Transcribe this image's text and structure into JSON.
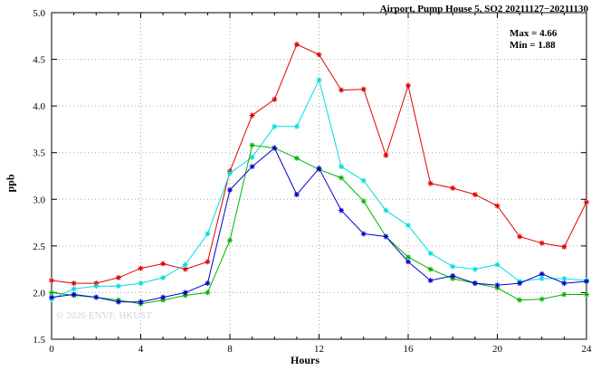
{
  "chart_data": {
    "type": "line",
    "title": "Airport, Pump House 5, SO2 20211127−20211130",
    "xlabel": "Hours",
    "ylabel": "ppb",
    "xlim": [
      0,
      24
    ],
    "ylim": [
      1.5,
      5.0
    ],
    "x_ticks": [
      0,
      4,
      8,
      12,
      16,
      20,
      24
    ],
    "y_ticks": [
      1.5,
      2.0,
      2.5,
      3.0,
      3.5,
      4.0,
      4.5,
      5.0
    ],
    "grid": true,
    "legend": "none",
    "annotations": {
      "max": "Max = 4.66",
      "min": "Min = 1.88"
    },
    "watermark": "© 2026 ENVF, HKUST",
    "x": [
      0,
      1,
      2,
      3,
      4,
      5,
      6,
      7,
      8,
      9,
      10,
      11,
      12,
      13,
      14,
      15,
      16,
      17,
      18,
      19,
      20,
      21,
      22,
      23,
      24
    ],
    "series": [
      {
        "name": "series-red",
        "color": "#e00000",
        "values": [
          2.13,
          2.1,
          2.1,
          2.16,
          2.26,
          2.31,
          2.25,
          2.33,
          3.3,
          3.9,
          4.07,
          4.66,
          4.55,
          4.17,
          4.18,
          3.47,
          4.22,
          3.17,
          3.12,
          3.05,
          2.93,
          2.6,
          2.53,
          2.49,
          2.97
        ]
      },
      {
        "name": "series-cyan",
        "color": "#00dcdc",
        "values": [
          1.93,
          2.04,
          2.07,
          2.07,
          2.1,
          2.16,
          2.3,
          2.63,
          3.28,
          3.45,
          3.78,
          3.78,
          4.28,
          3.35,
          3.2,
          2.88,
          2.72,
          2.42,
          2.28,
          2.25,
          2.3,
          2.12,
          2.15,
          2.15,
          2.13
        ]
      },
      {
        "name": "series-green",
        "color": "#00b400",
        "values": [
          2.0,
          1.97,
          1.95,
          1.92,
          1.88,
          1.92,
          1.97,
          2.0,
          2.56,
          3.58,
          3.55,
          3.44,
          3.32,
          3.23,
          2.98,
          2.6,
          2.38,
          2.25,
          2.15,
          2.1,
          2.05,
          1.92,
          1.93,
          1.98,
          1.98
        ]
      },
      {
        "name": "series-blue",
        "color": "#0000cc",
        "values": [
          1.95,
          1.98,
          1.95,
          1.9,
          1.9,
          1.95,
          2.0,
          2.1,
          3.1,
          3.35,
          3.55,
          3.05,
          3.33,
          2.88,
          2.63,
          2.6,
          2.33,
          2.13,
          2.18,
          2.1,
          2.08,
          2.1,
          2.2,
          2.1,
          2.12
        ]
      }
    ]
  }
}
